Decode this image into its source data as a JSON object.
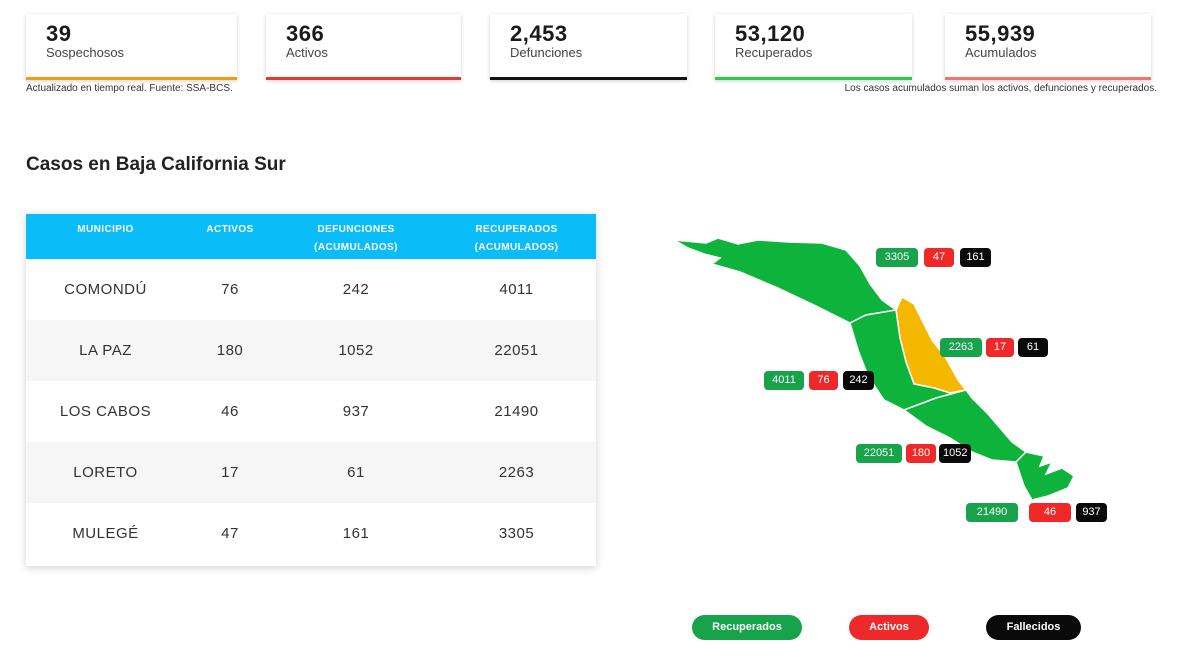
{
  "stats": [
    {
      "value": "39",
      "label": "Sospechosos",
      "color": "#f39c12"
    },
    {
      "value": "366",
      "label": "Activos",
      "color": "#e53935"
    },
    {
      "value": "2,453",
      "label": "Defunciones",
      "color": "#111111"
    },
    {
      "value": "53,120",
      "label": "Recuperados",
      "color": "#2ecc40"
    },
    {
      "value": "55,939",
      "label": "Acumulados",
      "color": "#f4736b"
    }
  ],
  "notes": {
    "left": "Actualizado en tiempo real. Fuente: SSA-BCS.",
    "right": "Los casos acumulados suman los activos, defunciones y recuperados."
  },
  "section_title": "Casos en Baja California Sur",
  "table": {
    "headers": [
      {
        "line1": "MUNICIPIO",
        "line2": ""
      },
      {
        "line1": "ACTIVOS",
        "line2": ""
      },
      {
        "line1": "DEFUNCIONES",
        "line2": "(ACUMULADOS)"
      },
      {
        "line1": "RECUPERADOS",
        "line2": "(ACUMULADOS)"
      }
    ],
    "rows": [
      [
        "COMONDÚ",
        "76",
        "242",
        "4011"
      ],
      [
        "LA PAZ",
        "180",
        "1052",
        "22051"
      ],
      [
        "LOS CABOS",
        "46",
        "937",
        "21490"
      ],
      [
        "LORETO",
        "17",
        "61",
        "2263"
      ],
      [
        "MULEGÉ",
        "47",
        "161",
        "3305"
      ]
    ]
  },
  "map": {
    "colors": {
      "municipality": "#0db33a",
      "highlight": "#f5b800",
      "border": "#ffffff"
    },
    "badges": {
      "mulege": [
        "3305",
        "47",
        "161"
      ],
      "loreto": [
        "2263",
        "17",
        "61"
      ],
      "comondu": [
        "4011",
        "76",
        "242"
      ],
      "lapaz": [
        "22051",
        "180",
        "1052"
      ],
      "loscabos": [
        "21490",
        "46",
        "937"
      ]
    }
  },
  "legend": {
    "recuperados": "Recuperados",
    "activos": "Activos",
    "fallecidos": "Fallecidos"
  }
}
